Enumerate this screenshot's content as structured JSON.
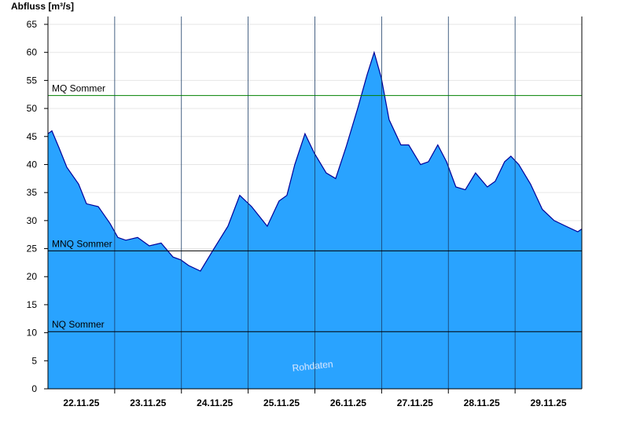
{
  "chart_data": {
    "type": "area",
    "y_axis_label": "Abfluss [m³/s]",
    "watermark": "Rohdaten",
    "xlim": [
      0,
      8
    ],
    "xticks": [
      {
        "value": 0.5,
        "label": "22.11.25"
      },
      {
        "value": 1.5,
        "label": "23.11.25"
      },
      {
        "value": 2.5,
        "label": "24.11.25"
      },
      {
        "value": 3.5,
        "label": "25.11.25"
      },
      {
        "value": 4.5,
        "label": "26.11.25"
      },
      {
        "value": 5.5,
        "label": "27.11.25"
      },
      {
        "value": 6.5,
        "label": "28.11.25"
      },
      {
        "value": 7.5,
        "label": "29.11.25"
      }
    ],
    "xgrid": [
      1,
      2,
      3,
      4,
      5,
      6,
      7
    ],
    "ylim": [
      0,
      65
    ],
    "yticks": [
      0,
      5,
      10,
      15,
      20,
      25,
      30,
      35,
      40,
      45,
      50,
      55,
      60,
      65
    ],
    "grid": true,
    "fill_color": "#29a3ff",
    "line_color": "#000099",
    "x": [
      0,
      0.059,
      0.165,
      0.283,
      0.46,
      0.577,
      0.754,
      0.93,
      1.048,
      1.166,
      1.343,
      1.519,
      1.696,
      1.873,
      1.99,
      2.108,
      2.285,
      2.462,
      2.697,
      2.874,
      3.051,
      3.286,
      3.463,
      3.581,
      3.698,
      3.852,
      3.993,
      4.17,
      4.311,
      4.464,
      4.641,
      4.782,
      4.888,
      4.994,
      5.112,
      5.289,
      5.406,
      5.583,
      5.701,
      5.842,
      5.972,
      6.113,
      6.254,
      6.407,
      6.584,
      6.702,
      6.843,
      6.937,
      7.055,
      7.232,
      7.409,
      7.585,
      7.762,
      7.939,
      7.998
    ],
    "values": [
      45.5,
      46,
      43,
      39.5,
      36.5,
      33,
      32.5,
      29.5,
      27,
      26.5,
      27,
      25.5,
      26,
      23.5,
      23,
      22,
      21,
      24.5,
      29,
      34.5,
      32.5,
      29,
      33.5,
      34.5,
      40,
      45.5,
      42,
      38.5,
      37.5,
      43,
      50,
      56,
      60,
      55.5,
      48,
      43.5,
      43.5,
      40,
      40.5,
      43.5,
      40.5,
      36,
      35.5,
      38.5,
      36,
      37,
      40.5,
      41.5,
      40,
      36.5,
      32,
      30,
      29,
      28,
      28.5
    ],
    "reference_lines": [
      {
        "label": "MQ Sommer",
        "value": 52.3,
        "color": "#008000"
      },
      {
        "label": "MNQ Sommer",
        "value": 24.6,
        "color": "#000000"
      },
      {
        "label": "NQ Sommer",
        "value": 10.2,
        "color": "#000000"
      }
    ]
  }
}
